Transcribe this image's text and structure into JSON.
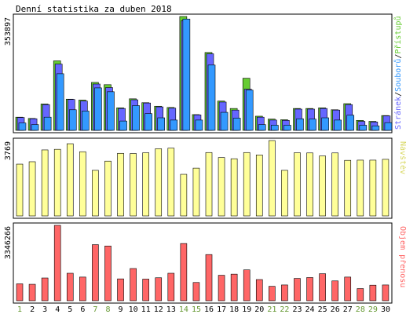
{
  "title": "Denní statistika za duben 2018",
  "colors": {
    "background": "#ffffff",
    "panel_border": "#000000",
    "grid": "#cfcfcf",
    "hits": "#66cc33",
    "files": "#3399ff",
    "pages": "#6666ff",
    "visits": "#ffff99",
    "kbytes": "#ff6666",
    "weekend_label": "#669933",
    "weekday_label": "#000000"
  },
  "chart_data": [
    {
      "type": "bar",
      "panel": "hits-files-pages",
      "ymax_label": "353897",
      "ylim": [
        0,
        353897
      ],
      "categories": [
        "1",
        "2",
        "3",
        "4",
        "5",
        "6",
        "7",
        "8",
        "9",
        "10",
        "11",
        "12",
        "13",
        "14",
        "15",
        "16",
        "17",
        "18",
        "19",
        "20",
        "21",
        "22",
        "23",
        "24",
        "25",
        "26",
        "27",
        "28",
        "29",
        "30"
      ],
      "weekend_days": [
        "1",
        "7",
        "8",
        "14",
        "15",
        "21",
        "22",
        "28",
        "29"
      ],
      "legend": {
        "pages": "Stránek",
        "sep1": "/",
        "files": "Souborů",
        "sep2": "/",
        "hits": "Přístupů"
      },
      "series": [
        {
          "name": "Přístupů",
          "values": [
            41000,
            37000,
            82000,
            216000,
            97000,
            94000,
            149000,
            142000,
            70000,
            98000,
            86000,
            75000,
            71000,
            353897,
            49000,
            242000,
            91000,
            68000,
            162000,
            44000,
            35000,
            33000,
            68000,
            68000,
            70000,
            64000,
            83000,
            31000,
            28000,
            46000
          ]
        },
        {
          "name": "Souborů",
          "values": [
            23000,
            18000,
            41000,
            176000,
            64000,
            60000,
            132000,
            120000,
            29000,
            77000,
            52000,
            39000,
            32000,
            346000,
            32000,
            203000,
            56000,
            38000,
            125000,
            18000,
            16000,
            16000,
            36000,
            35000,
            39000,
            32000,
            47000,
            16000,
            14000,
            24000
          ]
        },
        {
          "name": "Stránek",
          "values": [
            40000,
            36000,
            80000,
            206000,
            96000,
            91000,
            144000,
            133000,
            68000,
            95000,
            85000,
            73000,
            69000,
            341000,
            48000,
            238000,
            88000,
            63000,
            128000,
            41000,
            32000,
            31000,
            66000,
            66000,
            68000,
            63000,
            80000,
            28000,
            26000,
            45000
          ]
        }
      ]
    },
    {
      "type": "bar",
      "panel": "visits",
      "ymax_label": "3769",
      "ylim": [
        0,
        3769
      ],
      "legend": "Návštěv",
      "series": [
        {
          "name": "Návštěv",
          "values": [
            2590,
            2710,
            3300,
            3330,
            3610,
            3210,
            2280,
            2740,
            3130,
            3120,
            3160,
            3360,
            3390,
            2080,
            2390,
            3170,
            2920,
            2860,
            3170,
            3050,
            3769,
            2280,
            3160,
            3150,
            3000,
            3150,
            2780,
            2790,
            2790,
            2830
          ]
        }
      ]
    },
    {
      "type": "bar",
      "panel": "kbytes",
      "ymax_label": "3346266",
      "ylim": [
        0,
        3346266
      ],
      "legend": "Objem přenosu",
      "series": [
        {
          "name": "Objem přenosu",
          "values": [
            750000,
            730000,
            1010000,
            3346266,
            1220000,
            1050000,
            2490000,
            2430000,
            970000,
            1430000,
            960000,
            1020000,
            1220000,
            2540000,
            810000,
            2050000,
            1130000,
            1180000,
            1370000,
            940000,
            640000,
            700000,
            990000,
            1030000,
            1200000,
            880000,
            1050000,
            540000,
            690000,
            700000
          ]
        }
      ]
    }
  ]
}
